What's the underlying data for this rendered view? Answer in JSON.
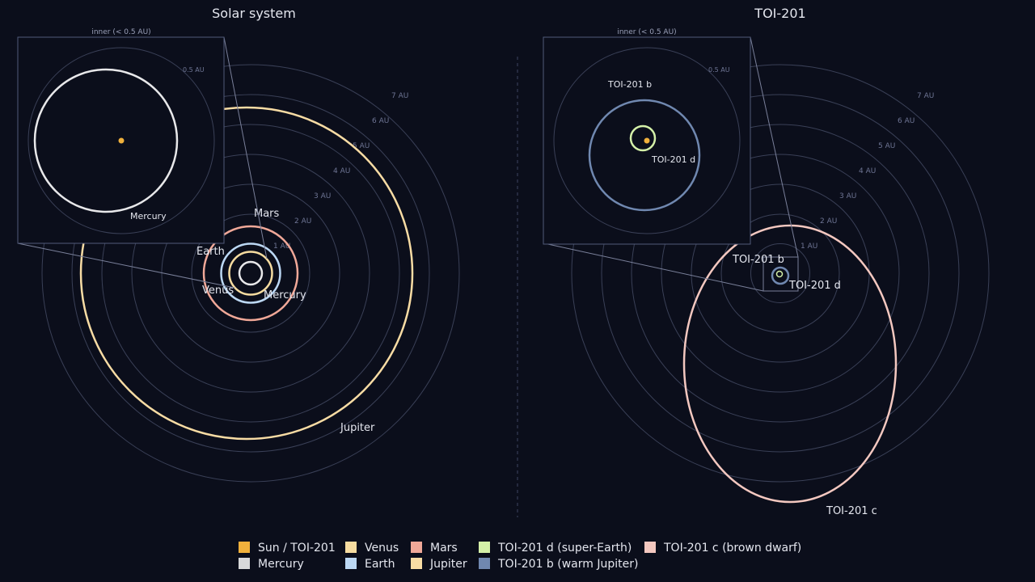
{
  "colors": {
    "background": "#0b0e1b",
    "grid": "#3a4057",
    "grid_label": "#6e7594",
    "text": "#e4e6ee",
    "sun": "#f0b03c",
    "mercury": "#e8e8ea",
    "venus": "#f6dca0",
    "earth": "#bcd8f4",
    "mars": "#f0a898",
    "jupiter": "#f8dca4",
    "toi_d": "#d4f0a8",
    "toi_b": "#7088b0",
    "toi_c": "#f4c8c0",
    "inset_border": "#505a78",
    "divider": "#3c4460"
  },
  "panels": {
    "solar": {
      "title": "Solar system",
      "ring_labels": [
        "1 AU",
        "2 AU",
        "3 AU",
        "4 AU",
        "5 AU",
        "6 AU",
        "7 AU"
      ],
      "planet_labels": {
        "mars": "Mars",
        "earth": "Earth",
        "venus": "Venus",
        "mercury": "Mercury",
        "jupiter": "Jupiter"
      },
      "inset": {
        "title": "inner (< 0.5 AU)",
        "ring_label": "0.5 AU",
        "planet_label": "Mercury"
      }
    },
    "toi": {
      "title": "TOI-201",
      "ring_labels": [
        "1 AU",
        "2 AU",
        "3 AU",
        "4 AU",
        "5 AU",
        "6 AU",
        "7 AU"
      ],
      "planet_labels": {
        "b": "TOI-201 b",
        "d": "TOI-201 d",
        "c": "TOI-201 c"
      },
      "inset": {
        "title": "inner (< 0.5 AU)",
        "ring_label": "0.5 AU",
        "label_b": "TOI-201 b",
        "label_d": "TOI-201 d"
      }
    }
  },
  "legend": {
    "items": [
      {
        "label": "Sun / TOI-201",
        "color": "#f0b03c"
      },
      {
        "label": "Mercury",
        "color": "#d8d8da"
      },
      {
        "label": "Venus",
        "color": "#f6dca0"
      },
      {
        "label": "Earth",
        "color": "#bcd8f4"
      },
      {
        "label": "Mars",
        "color": "#f0a898"
      },
      {
        "label": "Jupiter",
        "color": "#f8dca4"
      },
      {
        "label": "TOI-201 d (super-Earth)",
        "color": "#d4f0a8"
      },
      {
        "label": "TOI-201 b (warm Jupiter)",
        "color": "#7088b0"
      },
      {
        "label": "TOI-201 c (brown dwarf)",
        "color": "#f4c8c0"
      }
    ]
  }
}
